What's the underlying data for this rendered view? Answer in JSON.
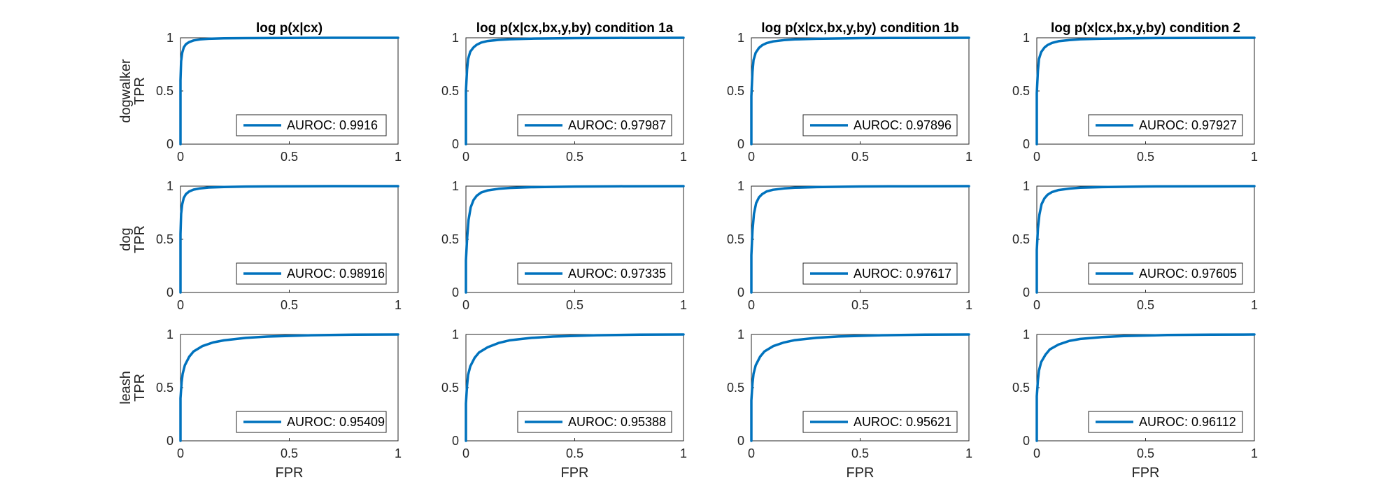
{
  "colors": {
    "curve": "#0072BD",
    "axis": "#262626"
  },
  "column_titles": [
    "log p(x|cx)",
    "log p(x|cx,bx,y,by) condition 1a",
    "log p(x|cx,bx,y,by) condition 1b",
    "log p(x|cx,bx,y,by) condition 2"
  ],
  "row_labels": [
    "dogwalker",
    "dog",
    "leash"
  ],
  "ylabel": "TPR",
  "xlabel": "FPR",
  "legend_prefix": "AUROC: ",
  "chart_data": [
    {
      "type": "line",
      "row": 0,
      "col": 0,
      "title": "log p(x|cx)",
      "xlabel": "",
      "ylabel": "TPR",
      "xlim": [
        0,
        1
      ],
      "ylim": [
        0,
        1
      ],
      "xticks": [
        "0",
        "0.5",
        "1"
      ],
      "yticks": [
        "0",
        "0.5",
        "1"
      ],
      "legend": "AUROC: 0.9916",
      "legend_position": "bottom-right",
      "series": [
        {
          "name": "AUROC: 0.9916",
          "x": [
            0,
            0,
            0.003,
            0.008,
            0.015,
            0.025,
            0.04,
            0.06,
            0.09,
            0.13,
            0.2,
            0.3,
            0.5,
            0.7,
            1
          ],
          "y": [
            0,
            0.6,
            0.78,
            0.86,
            0.91,
            0.94,
            0.96,
            0.975,
            0.985,
            0.991,
            0.995,
            0.997,
            0.999,
            1,
            1
          ]
        }
      ]
    },
    {
      "type": "line",
      "row": 0,
      "col": 1,
      "title": "log p(x|cx,bx,y,by) condition 1a",
      "xlabel": "",
      "ylabel": "",
      "xlim": [
        0,
        1
      ],
      "ylim": [
        0,
        1
      ],
      "xticks": [
        "0",
        "0.5",
        "1"
      ],
      "yticks": [
        "0",
        "0.5",
        "1"
      ],
      "legend": "AUROC: 0.97987",
      "legend_position": "bottom-right",
      "series": [
        {
          "name": "AUROC: 0.97987",
          "x": [
            0,
            0,
            0.005,
            0.01,
            0.02,
            0.035,
            0.05,
            0.07,
            0.1,
            0.15,
            0.2,
            0.3,
            0.5,
            0.7,
            1
          ],
          "y": [
            0,
            0.5,
            0.7,
            0.8,
            0.87,
            0.91,
            0.935,
            0.955,
            0.97,
            0.98,
            0.986,
            0.992,
            0.997,
            0.999,
            1
          ]
        }
      ]
    },
    {
      "type": "line",
      "row": 0,
      "col": 2,
      "title": "log p(x|cx,bx,y,by) condition 1b",
      "xlabel": "",
      "ylabel": "",
      "xlim": [
        0,
        1
      ],
      "ylim": [
        0,
        1
      ],
      "xticks": [
        "0",
        "0.5",
        "1"
      ],
      "yticks": [
        "0",
        "0.5",
        "1"
      ],
      "legend": "AUROC: 0.97896",
      "legend_position": "bottom-right",
      "series": [
        {
          "name": "AUROC: 0.97896",
          "x": [
            0,
            0,
            0.005,
            0.01,
            0.02,
            0.035,
            0.05,
            0.07,
            0.1,
            0.15,
            0.2,
            0.3,
            0.5,
            0.7,
            1
          ],
          "y": [
            0,
            0.45,
            0.68,
            0.79,
            0.86,
            0.905,
            0.93,
            0.95,
            0.966,
            0.978,
            0.985,
            0.991,
            0.997,
            0.999,
            1
          ]
        }
      ]
    },
    {
      "type": "line",
      "row": 0,
      "col": 3,
      "title": "log p(x|cx,bx,y,by) condition 2",
      "xlabel": "",
      "ylabel": "",
      "xlim": [
        0,
        1
      ],
      "ylim": [
        0,
        1
      ],
      "xticks": [
        "0",
        "0.5",
        "1"
      ],
      "yticks": [
        "0",
        "0.5",
        "1"
      ],
      "legend": "AUROC: 0.97927",
      "legend_position": "bottom-right",
      "series": [
        {
          "name": "AUROC: 0.97927",
          "x": [
            0,
            0,
            0.005,
            0.01,
            0.02,
            0.035,
            0.05,
            0.07,
            0.1,
            0.15,
            0.2,
            0.3,
            0.5,
            0.7,
            1
          ],
          "y": [
            0,
            0.48,
            0.69,
            0.8,
            0.865,
            0.908,
            0.932,
            0.952,
            0.968,
            0.979,
            0.986,
            0.992,
            0.997,
            0.999,
            1
          ]
        }
      ]
    },
    {
      "type": "line",
      "row": 1,
      "col": 0,
      "title": "",
      "xlabel": "",
      "ylabel": "TPR",
      "xlim": [
        0,
        1
      ],
      "ylim": [
        0,
        1
      ],
      "xticks": [
        "0",
        "0.5",
        "1"
      ],
      "yticks": [
        "0",
        "0.5",
        "1"
      ],
      "legend": "AUROC: 0.98916",
      "legend_position": "bottom-right",
      "series": [
        {
          "name": "AUROC: 0.98916",
          "x": [
            0,
            0,
            0.003,
            0.008,
            0.015,
            0.025,
            0.04,
            0.06,
            0.09,
            0.13,
            0.2,
            0.3,
            0.5,
            0.7,
            1
          ],
          "y": [
            0,
            0.55,
            0.74,
            0.83,
            0.89,
            0.925,
            0.95,
            0.967,
            0.979,
            0.987,
            0.992,
            0.996,
            0.999,
            1,
            1
          ]
        }
      ]
    },
    {
      "type": "line",
      "row": 1,
      "col": 1,
      "title": "",
      "xlabel": "",
      "ylabel": "",
      "xlim": [
        0,
        1
      ],
      "ylim": [
        0,
        1
      ],
      "xticks": [
        "0",
        "0.5",
        "1"
      ],
      "yticks": [
        "0",
        "0.5",
        "1"
      ],
      "legend": "AUROC: 0.97335",
      "legend_position": "bottom-right",
      "series": [
        {
          "name": "AUROC: 0.97335",
          "x": [
            0,
            0,
            0.005,
            0.012,
            0.022,
            0.035,
            0.05,
            0.07,
            0.1,
            0.15,
            0.2,
            0.3,
            0.5,
            0.7,
            1
          ],
          "y": [
            0,
            0.3,
            0.5,
            0.68,
            0.8,
            0.87,
            0.91,
            0.94,
            0.96,
            0.975,
            0.983,
            0.99,
            0.996,
            0.999,
            1
          ]
        }
      ]
    },
    {
      "type": "line",
      "row": 1,
      "col": 2,
      "title": "",
      "xlabel": "",
      "ylabel": "",
      "xlim": [
        0,
        1
      ],
      "ylim": [
        0,
        1
      ],
      "xticks": [
        "0",
        "0.5",
        "1"
      ],
      "yticks": [
        "0",
        "0.5",
        "1"
      ],
      "legend": "AUROC: 0.97617",
      "legend_position": "bottom-right",
      "series": [
        {
          "name": "AUROC: 0.97617",
          "x": [
            0,
            0,
            0.005,
            0.012,
            0.022,
            0.035,
            0.05,
            0.07,
            0.1,
            0.15,
            0.2,
            0.3,
            0.5,
            0.7,
            1
          ],
          "y": [
            0,
            0.35,
            0.58,
            0.74,
            0.84,
            0.895,
            0.925,
            0.95,
            0.966,
            0.978,
            0.985,
            0.991,
            0.997,
            0.999,
            1
          ]
        }
      ]
    },
    {
      "type": "line",
      "row": 1,
      "col": 3,
      "title": "",
      "xlabel": "",
      "ylabel": "",
      "xlim": [
        0,
        1
      ],
      "ylim": [
        0,
        1
      ],
      "xticks": [
        "0",
        "0.5",
        "1"
      ],
      "yticks": [
        "0",
        "0.5",
        "1"
      ],
      "legend": "AUROC: 0.97605",
      "legend_position": "bottom-right",
      "series": [
        {
          "name": "AUROC: 0.97605",
          "x": [
            0,
            0,
            0.005,
            0.012,
            0.022,
            0.035,
            0.05,
            0.07,
            0.1,
            0.15,
            0.2,
            0.3,
            0.5,
            0.7,
            1
          ],
          "y": [
            0,
            0.4,
            0.6,
            0.73,
            0.83,
            0.885,
            0.92,
            0.945,
            0.963,
            0.977,
            0.985,
            0.991,
            0.997,
            0.999,
            1
          ]
        }
      ]
    },
    {
      "type": "line",
      "row": 2,
      "col": 0,
      "title": "",
      "xlabel": "FPR",
      "ylabel": "TPR",
      "xlim": [
        0,
        1
      ],
      "ylim": [
        0,
        1
      ],
      "xticks": [
        "0",
        "0.5",
        "1"
      ],
      "yticks": [
        "0",
        "0.5",
        "1"
      ],
      "legend": "AUROC: 0.95409",
      "legend_position": "bottom-right",
      "series": [
        {
          "name": "AUROC: 0.95409",
          "x": [
            0,
            0,
            0.005,
            0.01,
            0.02,
            0.04,
            0.06,
            0.1,
            0.15,
            0.2,
            0.3,
            0.4,
            0.6,
            0.8,
            1
          ],
          "y": [
            0,
            0.4,
            0.55,
            0.63,
            0.71,
            0.79,
            0.84,
            0.89,
            0.925,
            0.945,
            0.968,
            0.98,
            0.993,
            0.998,
            1
          ]
        }
      ]
    },
    {
      "type": "line",
      "row": 2,
      "col": 1,
      "title": "",
      "xlabel": "FPR",
      "ylabel": "",
      "xlim": [
        0,
        1
      ],
      "ylim": [
        0,
        1
      ],
      "xticks": [
        "0",
        "0.5",
        "1"
      ],
      "yticks": [
        "0",
        "0.5",
        "1"
      ],
      "legend": "AUROC: 0.95388",
      "legend_position": "bottom-right",
      "series": [
        {
          "name": "AUROC: 0.95388",
          "x": [
            0,
            0,
            0.005,
            0.01,
            0.02,
            0.04,
            0.06,
            0.1,
            0.15,
            0.2,
            0.3,
            0.4,
            0.6,
            0.8,
            1
          ],
          "y": [
            0,
            0.35,
            0.52,
            0.62,
            0.7,
            0.78,
            0.83,
            0.88,
            0.92,
            0.945,
            0.968,
            0.98,
            0.993,
            0.998,
            1
          ]
        }
      ]
    },
    {
      "type": "line",
      "row": 2,
      "col": 2,
      "title": "",
      "xlabel": "FPR",
      "ylabel": "",
      "xlim": [
        0,
        1
      ],
      "ylim": [
        0,
        1
      ],
      "xticks": [
        "0",
        "0.5",
        "1"
      ],
      "yticks": [
        "0",
        "0.5",
        "1"
      ],
      "legend": "AUROC: 0.95621",
      "legend_position": "bottom-right",
      "series": [
        {
          "name": "AUROC: 0.95621",
          "x": [
            0,
            0,
            0.005,
            0.01,
            0.02,
            0.04,
            0.06,
            0.1,
            0.15,
            0.2,
            0.3,
            0.4,
            0.6,
            0.8,
            1
          ],
          "y": [
            0,
            0.38,
            0.54,
            0.63,
            0.71,
            0.79,
            0.84,
            0.89,
            0.925,
            0.947,
            0.969,
            0.981,
            0.993,
            0.998,
            1
          ]
        }
      ]
    },
    {
      "type": "line",
      "row": 2,
      "col": 3,
      "title": "",
      "xlabel": "FPR",
      "ylabel": "",
      "xlim": [
        0,
        1
      ],
      "ylim": [
        0,
        1
      ],
      "xticks": [
        "0",
        "0.5",
        "1"
      ],
      "yticks": [
        "0",
        "0.5",
        "1"
      ],
      "legend": "AUROC: 0.96112",
      "legend_position": "bottom-right",
      "series": [
        {
          "name": "AUROC: 0.96112",
          "x": [
            0,
            0,
            0.005,
            0.01,
            0.02,
            0.04,
            0.06,
            0.1,
            0.15,
            0.2,
            0.3,
            0.4,
            0.6,
            0.8,
            1
          ],
          "y": [
            0,
            0.42,
            0.57,
            0.66,
            0.74,
            0.81,
            0.86,
            0.905,
            0.94,
            0.958,
            0.975,
            0.985,
            0.995,
            0.998,
            1
          ]
        }
      ]
    }
  ]
}
